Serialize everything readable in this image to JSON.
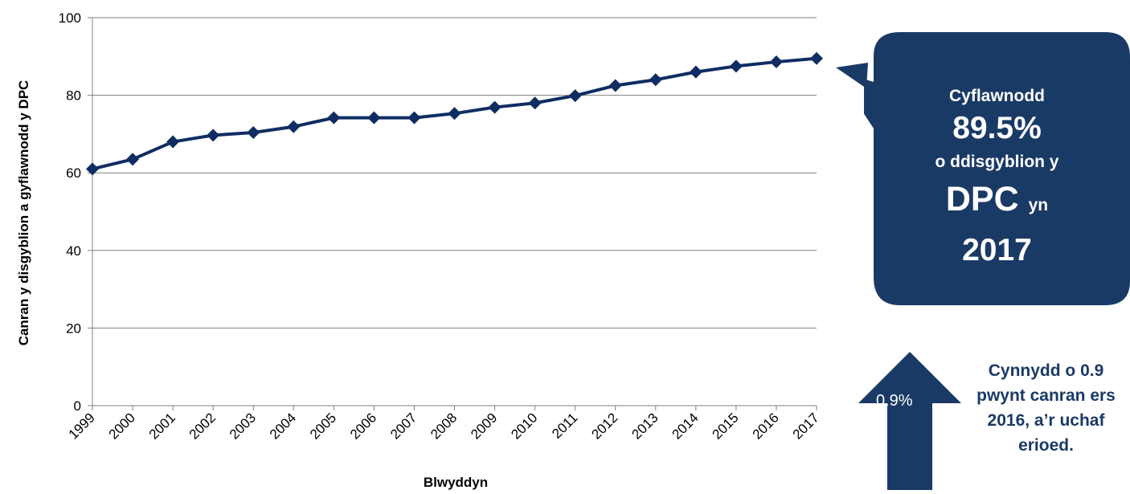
{
  "chart_data": {
    "type": "line",
    "x": [
      "1999",
      "2000",
      "2001",
      "2002",
      "2003",
      "2004",
      "2005",
      "2006",
      "2007",
      "2008",
      "2009",
      "2010",
      "2011",
      "2012",
      "2013",
      "2014",
      "2015",
      "2016",
      "2017"
    ],
    "series": [
      {
        "values": [
          61,
          63.5,
          68,
          69.7,
          70.4,
          71.9,
          74.2,
          74.2,
          74.2,
          75.3,
          76.9,
          78,
          79.9,
          82.5,
          84,
          86,
          87.5,
          88.6,
          89.5
        ]
      }
    ],
    "xlabel": "Blwyddyn",
    "ylabel": "Canran y disgyblion a gyflawnodd y DPC",
    "ylim": [
      0,
      100
    ],
    "yticks": [
      0,
      20,
      40,
      60,
      80,
      100
    ],
    "grid": true,
    "line_color": "#0f2d62"
  },
  "callout": {
    "line1": "Cyflawnodd",
    "value": "89.5%",
    "line3": "o ddisgyblion y",
    "line4": "DPC",
    "line4_suffix": "yn",
    "year": "2017",
    "color": "#1a3a66"
  },
  "increase": {
    "arrow_label": "0.9%",
    "note": "Cynnydd o 0.9 pwynt canran ers 2016, a’r uchaf erioed."
  }
}
